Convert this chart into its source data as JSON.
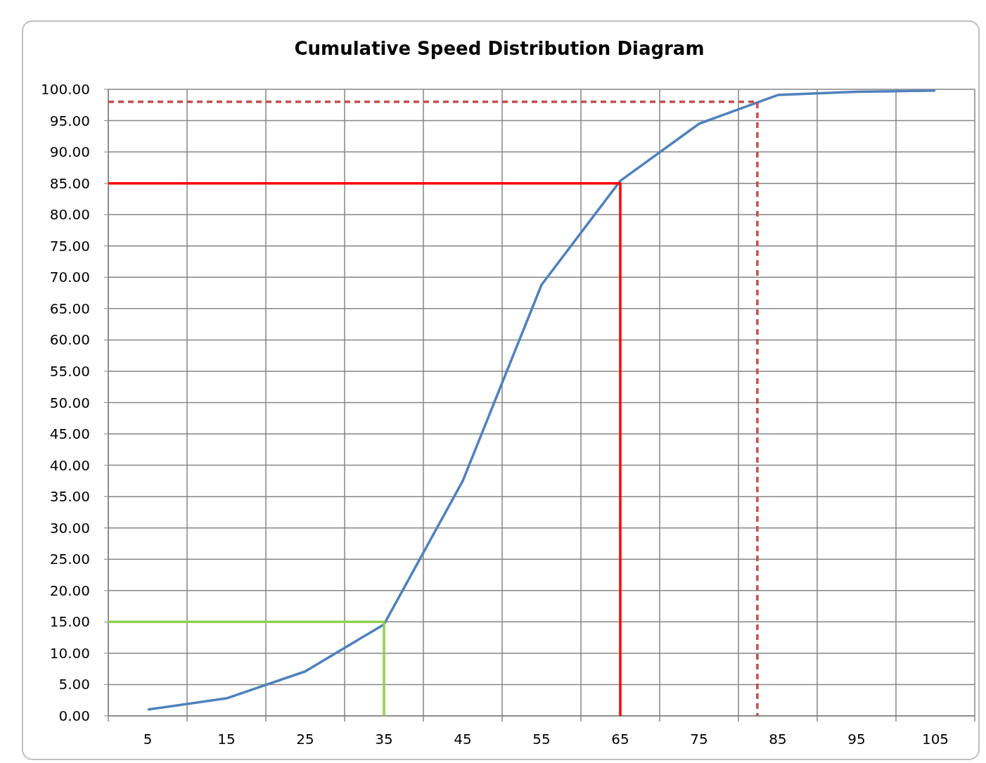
{
  "chart_data": {
    "type": "line",
    "title": "Cumulative Speed Distribution Diagram",
    "xlim": [
      0,
      110
    ],
    "xticks": [
      {
        "value": 0,
        "label": null
      },
      {
        "value": 5,
        "label": "5"
      },
      {
        "value": 10,
        "label": null
      },
      {
        "value": 15,
        "label": "15"
      },
      {
        "value": 20,
        "label": null
      },
      {
        "value": 25,
        "label": "25"
      },
      {
        "value": 30,
        "label": null
      },
      {
        "value": 35,
        "label": "35"
      },
      {
        "value": 40,
        "label": null
      },
      {
        "value": 45,
        "label": "45"
      },
      {
        "value": 50,
        "label": null
      },
      {
        "value": 55,
        "label": "55"
      },
      {
        "value": 60,
        "label": null
      },
      {
        "value": 65,
        "label": "65"
      },
      {
        "value": 70,
        "label": null
      },
      {
        "value": 75,
        "label": "75"
      },
      {
        "value": 80,
        "label": null
      },
      {
        "value": 85,
        "label": "85"
      },
      {
        "value": 90,
        "label": null
      },
      {
        "value": 95,
        "label": "95"
      },
      {
        "value": 100,
        "label": null
      },
      {
        "value": 105,
        "label": "105"
      },
      {
        "value": 110,
        "label": null
      }
    ],
    "ylim": [
      0,
      100
    ],
    "yticks": [
      {
        "value": 0,
        "label": "0.00"
      },
      {
        "value": 5,
        "label": "5.00"
      },
      {
        "value": 10,
        "label": "10.00"
      },
      {
        "value": 15,
        "label": "15.00"
      },
      {
        "value": 20,
        "label": "20.00"
      },
      {
        "value": 25,
        "label": "25.00"
      },
      {
        "value": 30,
        "label": "30.00"
      },
      {
        "value": 35,
        "label": "35.00"
      },
      {
        "value": 40,
        "label": "40.00"
      },
      {
        "value": 45,
        "label": "45.00"
      },
      {
        "value": 50,
        "label": "50.00"
      },
      {
        "value": 55,
        "label": "55.00"
      },
      {
        "value": 60,
        "label": "60.00"
      },
      {
        "value": 65,
        "label": "65.00"
      },
      {
        "value": 70,
        "label": "70.00"
      },
      {
        "value": 75,
        "label": "75.00"
      },
      {
        "value": 80,
        "label": "80.00"
      },
      {
        "value": 85,
        "label": "85.00"
      },
      {
        "value": 90,
        "label": "90.00"
      },
      {
        "value": 95,
        "label": "95.00"
      },
      {
        "value": 100,
        "label": "100.00"
      }
    ],
    "grid": true,
    "series": [
      {
        "color": "#4f81bd",
        "x": [
          5,
          15,
          25,
          35,
          45,
          55,
          65,
          75,
          85,
          95,
          105
        ],
        "values": [
          1.0,
          2.8,
          7.1,
          14.6,
          37.5,
          68.8,
          85.4,
          94.5,
          99.1,
          99.6,
          99.8
        ]
      },
      {
        "color": "#92d050",
        "x": [
          0,
          35,
          35
        ],
        "values": [
          15,
          15,
          0
        ]
      },
      {
        "color": "#ff0000",
        "x": [
          0,
          65,
          65
        ],
        "values": [
          85,
          85,
          0
        ]
      },
      {
        "color": "#c0504d",
        "x": [
          0,
          82.4,
          82.4
        ],
        "values": [
          98,
          98,
          0
        ],
        "line_style": "dashed"
      }
    ]
  }
}
